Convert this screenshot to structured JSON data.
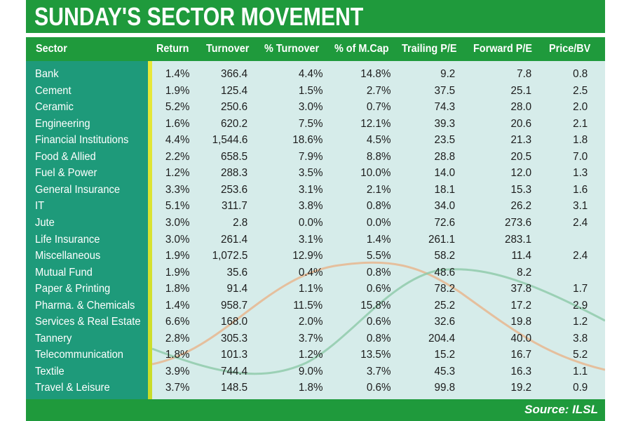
{
  "title": "SUNDAY'S SECTOR MOVEMENT",
  "source": "Source: ILSL",
  "colors": {
    "green": "#1f9a3c",
    "teal": "#1e9a7a",
    "table_bg": "#d6ecea",
    "accent_yellow": "#e9e93a"
  },
  "headers": [
    "Sector",
    "Return",
    "Turnover",
    "% Turnover",
    "% of M.Cap",
    "Trailing P/E",
    "Forward P/E",
    "Price/BV"
  ],
  "rows": [
    [
      "Bank",
      "1.4%",
      "366.4",
      "4.4%",
      "14.8%",
      "9.2",
      "7.8",
      "0.8"
    ],
    [
      "Cement",
      "1.9%",
      "125.4",
      "1.5%",
      "2.7%",
      "37.5",
      "25.1",
      "2.5"
    ],
    [
      "Ceramic",
      "5.2%",
      "250.6",
      "3.0%",
      "0.7%",
      "74.3",
      "28.0",
      "2.0"
    ],
    [
      "Engineering",
      "1.6%",
      "620.2",
      "7.5%",
      "12.1%",
      "39.3",
      "20.6",
      "2.1"
    ],
    [
      "Financial Institutions",
      "4.4%",
      "1,544.6",
      "18.6%",
      "4.5%",
      "23.5",
      "21.3",
      "1.8"
    ],
    [
      "Food & Allied",
      "2.2%",
      "658.5",
      "7.9%",
      "8.8%",
      "28.8",
      "20.5",
      "7.0"
    ],
    [
      "Fuel & Power",
      "1.2%",
      "288.3",
      "3.5%",
      "10.0%",
      "14.0",
      "12.0",
      "1.3"
    ],
    [
      "General Insurance",
      "3.3%",
      "253.6",
      "3.1%",
      "2.1%",
      "18.1",
      "15.3",
      "1.6"
    ],
    [
      "IT",
      "5.1%",
      "311.7",
      "3.8%",
      "0.8%",
      "34.0",
      "26.2",
      "3.1"
    ],
    [
      "Jute",
      "3.0%",
      "2.8",
      "0.0%",
      "0.0%",
      "72.6",
      "273.6",
      "2.4"
    ],
    [
      "Life Insurance",
      "3.0%",
      "261.4",
      "3.1%",
      "1.4%",
      "261.1",
      "283.1",
      ""
    ],
    [
      "Miscellaneous",
      "1.9%",
      "1,072.5",
      "12.9%",
      "5.5%",
      "58.2",
      "11.4",
      "2.4"
    ],
    [
      "Mutual Fund",
      "1.9%",
      "35.6",
      "0.4%",
      "0.8%",
      "48.6",
      "8.2",
      ""
    ],
    [
      "Paper & Printing",
      "1.8%",
      "91.4",
      "1.1%",
      "0.6%",
      "78.2",
      "37.8",
      "1.7"
    ],
    [
      "Pharma. & Chemicals",
      "1.4%",
      "958.7",
      "11.5%",
      "15.8%",
      "25.2",
      "17.2",
      "2.9"
    ],
    [
      "Services & Real Estate",
      "6.6%",
      "168.0",
      "2.0%",
      "0.6%",
      "32.6",
      "19.8",
      "1.2"
    ],
    [
      "Tannery",
      "2.8%",
      "305.3",
      "3.7%",
      "0.8%",
      "204.4",
      "40.0",
      "3.8"
    ],
    [
      "Telecommunication",
      "1.8%",
      "101.3",
      "1.2%",
      "13.5%",
      "15.2",
      "16.7",
      "5.2"
    ],
    [
      "Textile",
      "3.9%",
      "744.4",
      "9.0%",
      "3.7%",
      "45.3",
      "16.3",
      "1.1"
    ],
    [
      "Travel & Leisure",
      "3.7%",
      "148.5",
      "1.8%",
      "0.6%",
      "99.8",
      "19.2",
      "0.9"
    ]
  ]
}
